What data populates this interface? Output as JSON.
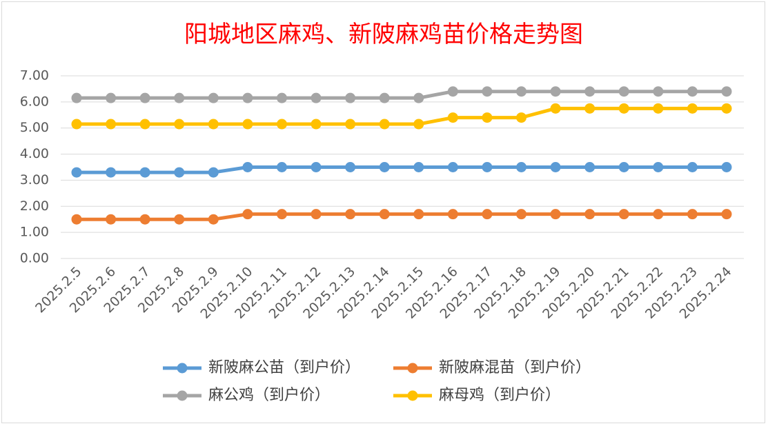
{
  "chart_data": {
    "type": "line",
    "title": "阳城地区麻鸡、新陂麻鸡苗价格走势图",
    "xlabel": "",
    "ylabel": "",
    "ylim": [
      0,
      7
    ],
    "y_tick_labels": [
      "0.00",
      "1.00",
      "2.00",
      "3.00",
      "4.00",
      "5.00",
      "6.00",
      "7.00"
    ],
    "grid": true,
    "legend_position": "bottom",
    "categories": [
      "2025.2.5",
      "2025.2.6",
      "2025.2.7",
      "2025.2.8",
      "2025.2.9",
      "2025.2.10",
      "2025.2.11",
      "2025.2.12",
      "2025.2.13",
      "2025.2.14",
      "2025.2.15",
      "2025.2.16",
      "2025.2.17",
      "2025.2.18",
      "2025.2.19",
      "2025.2.20",
      "2025.2.21",
      "2025.2.22",
      "2025.2.23",
      "2025.2.24"
    ],
    "series": [
      {
        "name": "新陂麻公苗（到户价）",
        "color": "#5b9bd5",
        "values": [
          3.3,
          3.3,
          3.3,
          3.3,
          3.3,
          3.5,
          3.5,
          3.5,
          3.5,
          3.5,
          3.5,
          3.5,
          3.5,
          3.5,
          3.5,
          3.5,
          3.5,
          3.5,
          3.5,
          3.5
        ]
      },
      {
        "name": "新陂麻混苗（到户价）",
        "color": "#ed7d31",
        "values": [
          1.5,
          1.5,
          1.5,
          1.5,
          1.5,
          1.7,
          1.7,
          1.7,
          1.7,
          1.7,
          1.7,
          1.7,
          1.7,
          1.7,
          1.7,
          1.7,
          1.7,
          1.7,
          1.7,
          1.7
        ]
      },
      {
        "name": "麻公鸡（到户价）",
        "color": "#a5a5a5",
        "values": [
          6.15,
          6.15,
          6.15,
          6.15,
          6.15,
          6.15,
          6.15,
          6.15,
          6.15,
          6.15,
          6.15,
          6.4,
          6.4,
          6.4,
          6.4,
          6.4,
          6.4,
          6.4,
          6.4,
          6.4
        ]
      },
      {
        "name": "麻母鸡（到户价）",
        "color": "#ffc000",
        "values": [
          5.15,
          5.15,
          5.15,
          5.15,
          5.15,
          5.15,
          5.15,
          5.15,
          5.15,
          5.15,
          5.15,
          5.4,
          5.4,
          5.4,
          5.75,
          5.75,
          5.75,
          5.75,
          5.75,
          5.75
        ]
      }
    ]
  }
}
